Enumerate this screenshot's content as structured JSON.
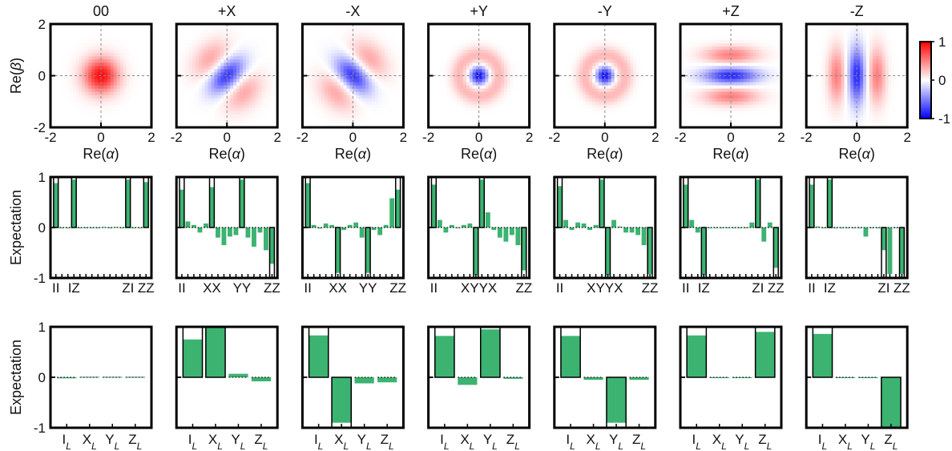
{
  "figure": {
    "row_labels": {
      "wigner_y": [
        "Re(",
        "β",
        ")"
      ],
      "wigner_x": [
        "Re(",
        "α",
        ")"
      ],
      "expectation": "Expectation"
    },
    "colorbar": {
      "ticks": [
        "1",
        "0",
        "-1"
      ],
      "low_color": "#0000ff",
      "mid_color": "#ffffff",
      "high_color": "#ff0000"
    },
    "bar_color": "#3cb371",
    "ideal_edge_color": "#000000"
  },
  "chart_data": [
    {
      "type": "heatmap",
      "panel_titles": [
        "00",
        "+X",
        "-X",
        "+Y",
        "-Y",
        "+Z",
        "-Z"
      ],
      "xlabel": "Re(α)",
      "ylabel": "Re(β)",
      "xlim": [
        -2,
        2
      ],
      "ylim": [
        -2,
        2
      ],
      "xticks": [
        "-2",
        "0",
        "2"
      ],
      "yticks": [
        "2",
        "0",
        "-2"
      ],
      "color_range": [
        -1,
        1
      ],
      "grid": "dashed crosshair at 0",
      "patterns": [
        "gaussian-positive",
        "diagonal-negative",
        "antidiagonal-negative",
        "ring-negative-center",
        "ring-negative-center",
        "horizontal-fringes",
        "vertical-fringes"
      ]
    },
    {
      "type": "bar",
      "ylabel": "Expectation",
      "ylim": [
        -1,
        1
      ],
      "yticks": [
        "1",
        "0",
        "-1"
      ],
      "n_categories": 16,
      "tick_labels": [
        [
          {
            "text": "II",
            "i": 0
          },
          {
            "text": "IZ",
            "i": 3
          },
          {
            "text": "ZI",
            "i": 12
          },
          {
            "text": "ZZ",
            "i": 15
          }
        ],
        [
          {
            "text": "II",
            "i": 0
          },
          {
            "text": "XX",
            "i": 5
          },
          {
            "text": "YY",
            "i": 10
          },
          {
            "text": "ZZ",
            "i": 15
          }
        ],
        [
          {
            "text": "II",
            "i": 0
          },
          {
            "text": "XX",
            "i": 5
          },
          {
            "text": "YY",
            "i": 10
          },
          {
            "text": "ZZ",
            "i": 15
          }
        ],
        [
          {
            "text": "II",
            "i": 0
          },
          {
            "text": "XYYX",
            "i": 7.5
          },
          {
            "text": "ZZ",
            "i": 15
          }
        ],
        [
          {
            "text": "II",
            "i": 0
          },
          {
            "text": "XYYX",
            "i": 7.5
          },
          {
            "text": "ZZ",
            "i": 15
          }
        ],
        [
          {
            "text": "II",
            "i": 0
          },
          {
            "text": "IZ",
            "i": 3
          },
          {
            "text": "ZI",
            "i": 12
          },
          {
            "text": "ZZ",
            "i": 15
          }
        ],
        [
          {
            "text": "II",
            "i": 0
          },
          {
            "text": "IZ",
            "i": 3
          },
          {
            "text": "ZI",
            "i": 12
          },
          {
            "text": "ZZ",
            "i": 15
          }
        ]
      ],
      "series": [
        {
          "ideal": [
            1,
            0,
            0,
            1,
            0,
            0,
            0,
            0,
            0,
            0,
            0,
            0,
            1,
            0,
            0,
            1
          ],
          "measured": [
            0.88,
            0,
            0,
            0.95,
            0,
            0,
            0,
            0,
            0.01,
            0,
            0.01,
            -0.01,
            0.95,
            0,
            0,
            0.9
          ]
        },
        {
          "ideal": [
            1,
            0,
            0,
            0,
            0,
            1,
            0,
            0,
            0,
            0,
            1,
            0,
            0,
            0,
            0,
            -1
          ],
          "measured": [
            0.75,
            0.12,
            0.05,
            -0.1,
            0.08,
            0.8,
            -0.2,
            -0.35,
            -0.18,
            -0.15,
            0.95,
            -0.2,
            -0.38,
            -0.1,
            -0.45,
            -0.72
          ]
        },
        {
          "ideal": [
            1,
            0,
            0,
            0,
            0,
            -1,
            0,
            0,
            0,
            0,
            -1,
            0,
            0,
            0,
            0,
            1
          ],
          "measured": [
            0.88,
            0.05,
            -0.02,
            0.08,
            0.05,
            -0.9,
            -0.05,
            0.05,
            0.1,
            -0.2,
            -0.9,
            -0.05,
            -0.15,
            0.05,
            0.58,
            0.75
          ]
        },
        {
          "ideal": [
            1,
            0,
            0,
            0,
            0,
            0,
            0,
            -1,
            1,
            0,
            0,
            0,
            0,
            0,
            0,
            -1
          ],
          "measured": [
            0.85,
            0.15,
            -0.1,
            0.05,
            0,
            0.05,
            0.08,
            -0.95,
            0.95,
            0.3,
            -0.05,
            -0.2,
            -0.28,
            -0.15,
            -0.35,
            -0.85
          ]
        },
        {
          "ideal": [
            1,
            0,
            0,
            0,
            0,
            0,
            0,
            1,
            -1,
            0,
            0,
            0,
            0,
            0,
            0,
            -1
          ],
          "measured": [
            0.82,
            0.15,
            -0.05,
            0.1,
            0.08,
            -0.05,
            0.05,
            0.95,
            -0.95,
            0.15,
            0.02,
            -0.1,
            -0.1,
            -0.15,
            -0.35,
            -0.92
          ]
        },
        {
          "ideal": [
            1,
            0,
            0,
            -1,
            0,
            0,
            0,
            0,
            0,
            0,
            0,
            0,
            1,
            0,
            0,
            -1
          ],
          "measured": [
            0.85,
            0.15,
            -0.1,
            -0.95,
            0,
            0,
            0,
            0,
            0,
            0,
            -0.01,
            0.1,
            0.95,
            -0.28,
            0.1,
            -0.8
          ]
        },
        {
          "ideal": [
            1,
            0,
            0,
            1,
            0,
            0,
            0,
            0,
            0,
            0,
            0,
            0,
            -1,
            0,
            0,
            -1
          ],
          "measured": [
            0.85,
            0.02,
            0,
            0.95,
            0,
            0,
            0,
            0,
            0,
            -0.18,
            0,
            0,
            -0.45,
            -0.92,
            0,
            -0.92
          ]
        }
      ]
    },
    {
      "type": "bar",
      "ylabel": "Expectation",
      "ylim": [
        -1,
        1
      ],
      "yticks": [
        "1",
        "0",
        "-1"
      ],
      "categories": [
        [
          "I",
          "L"
        ],
        [
          "X",
          "L"
        ],
        [
          "Y",
          "L"
        ],
        [
          "Z",
          "L"
        ]
      ],
      "series": [
        {
          "ideal": [
            0,
            0,
            0,
            0
          ],
          "measured": [
            -0.02,
            0.01,
            0.01,
            0.01
          ]
        },
        {
          "ideal": [
            1,
            1,
            0,
            0
          ],
          "measured": [
            0.75,
            1,
            0.07,
            -0.08
          ]
        },
        {
          "ideal": [
            1,
            -1,
            0,
            0
          ],
          "measured": [
            0.83,
            -0.9,
            -0.12,
            -0.1
          ]
        },
        {
          "ideal": [
            1,
            0,
            1,
            0
          ],
          "measured": [
            0.82,
            -0.15,
            0.95,
            -0.03
          ]
        },
        {
          "ideal": [
            1,
            0,
            -1,
            0
          ],
          "measured": [
            0.82,
            -0.05,
            -0.9,
            -0.05
          ]
        },
        {
          "ideal": [
            1,
            0,
            0,
            1
          ],
          "measured": [
            0.83,
            0,
            0,
            0.9
          ]
        },
        {
          "ideal": [
            1,
            0,
            0,
            -1
          ],
          "measured": [
            0.86,
            0,
            0,
            -1
          ]
        }
      ]
    }
  ]
}
